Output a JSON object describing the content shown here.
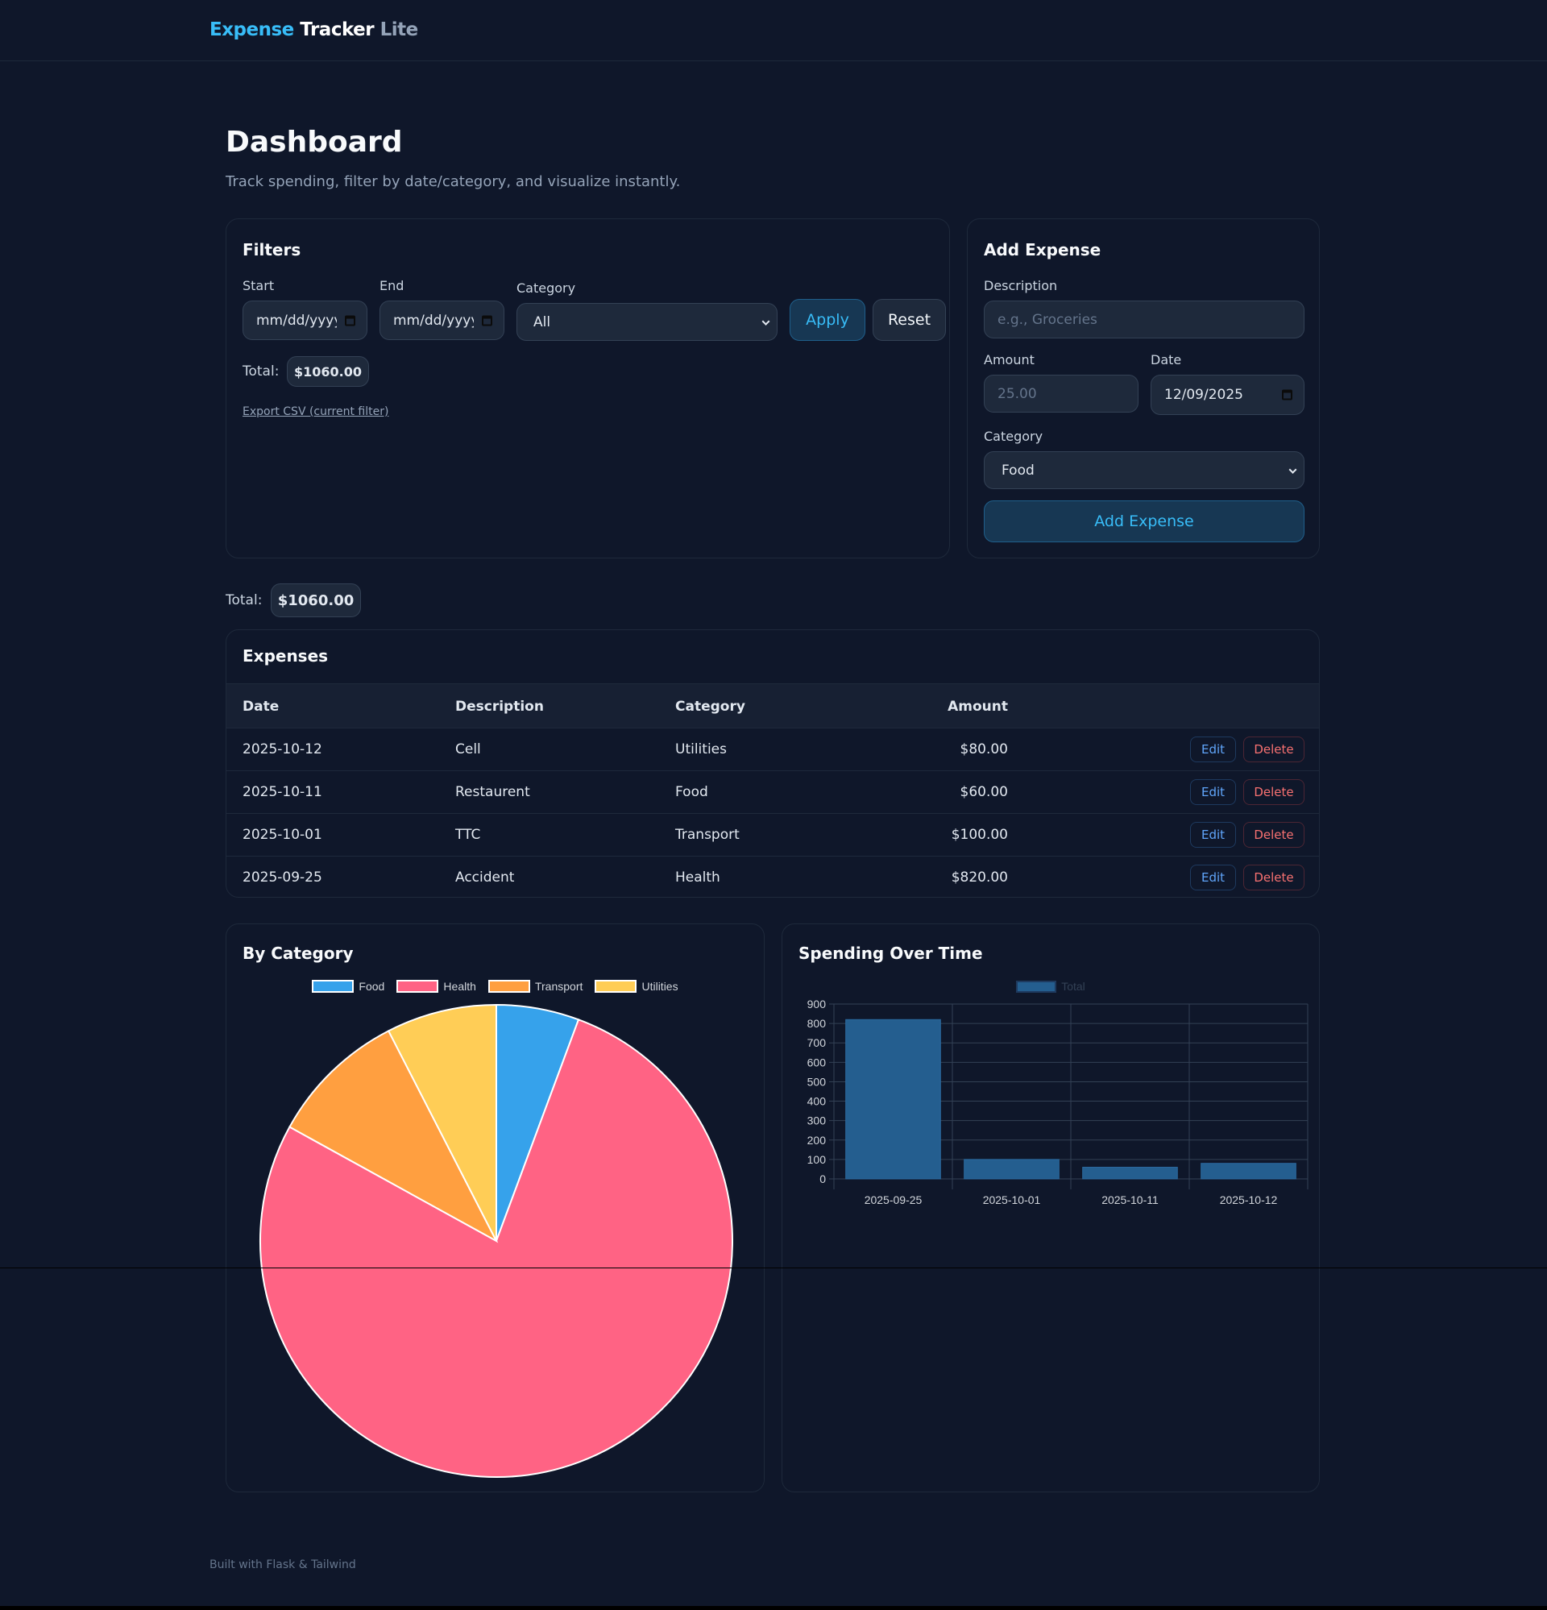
{
  "header": {
    "logo_part1": "Expense",
    "logo_part2": "Tracker",
    "logo_part3": "Lite"
  },
  "page": {
    "title": "Dashboard",
    "subtitle": "Track spending, filter by date/category, and visualize instantly."
  },
  "filters": {
    "title": "Filters",
    "start_label": "Start",
    "start_value": "mm/dd/yyyy",
    "end_label": "End",
    "end_value": "mm/dd/yyyy",
    "category_label": "Category",
    "category_value": "All",
    "apply_label": "Apply",
    "reset_label": "Reset",
    "total_label": "Total:",
    "total_value": "$1060.00",
    "export_label": "Export CSV (current filter)"
  },
  "add_expense": {
    "title": "Add Expense",
    "description_label": "Description",
    "description_placeholder": "e.g., Groceries",
    "amount_label": "Amount",
    "amount_placeholder": "25.00",
    "date_label": "Date",
    "date_value": "12/09/2025",
    "category_label": "Category",
    "category_value": "Food",
    "submit_label": "Add Expense"
  },
  "summary": {
    "total_label": "Total:",
    "total_value": "$1060.00"
  },
  "expenses": {
    "title": "Expenses",
    "columns": [
      "Date",
      "Description",
      "Category",
      "Amount"
    ],
    "edit_label": "Edit",
    "delete_label": "Delete",
    "rows": [
      {
        "date": "2025-10-12",
        "description": "Cell",
        "category": "Utilities",
        "amount": "$80.00"
      },
      {
        "date": "2025-10-11",
        "description": "Restaurent",
        "category": "Food",
        "amount": "$60.00"
      },
      {
        "date": "2025-10-01",
        "description": "TTC",
        "category": "Transport",
        "amount": "$100.00"
      },
      {
        "date": "2025-09-25",
        "description": "Accident",
        "category": "Health",
        "amount": "$820.00"
      }
    ]
  },
  "chart_data": [
    {
      "type": "pie",
      "title": "By Category",
      "categories": [
        "Food",
        "Health",
        "Transport",
        "Utilities"
      ],
      "values": [
        60,
        820,
        100,
        80
      ],
      "colors": [
        "#36a2eb",
        "#ff6384",
        "#ff9f40",
        "#ffcd56"
      ],
      "legend_position": "top"
    },
    {
      "type": "bar",
      "title": "Spending Over Time",
      "categories": [
        "2025-09-25",
        "2025-10-01",
        "2025-10-11",
        "2025-10-12"
      ],
      "series": [
        {
          "name": "Total",
          "values": [
            820,
            100,
            60,
            80
          ]
        }
      ],
      "xlabel": "",
      "ylabel": "",
      "ylim": [
        0,
        900
      ],
      "yticks": [
        0,
        100,
        200,
        300,
        400,
        500,
        600,
        700,
        800,
        900
      ],
      "grid": true,
      "color": "#245e8f",
      "legend_position": "top"
    }
  ],
  "footer": {
    "text": "Built with Flask & Tailwind"
  }
}
